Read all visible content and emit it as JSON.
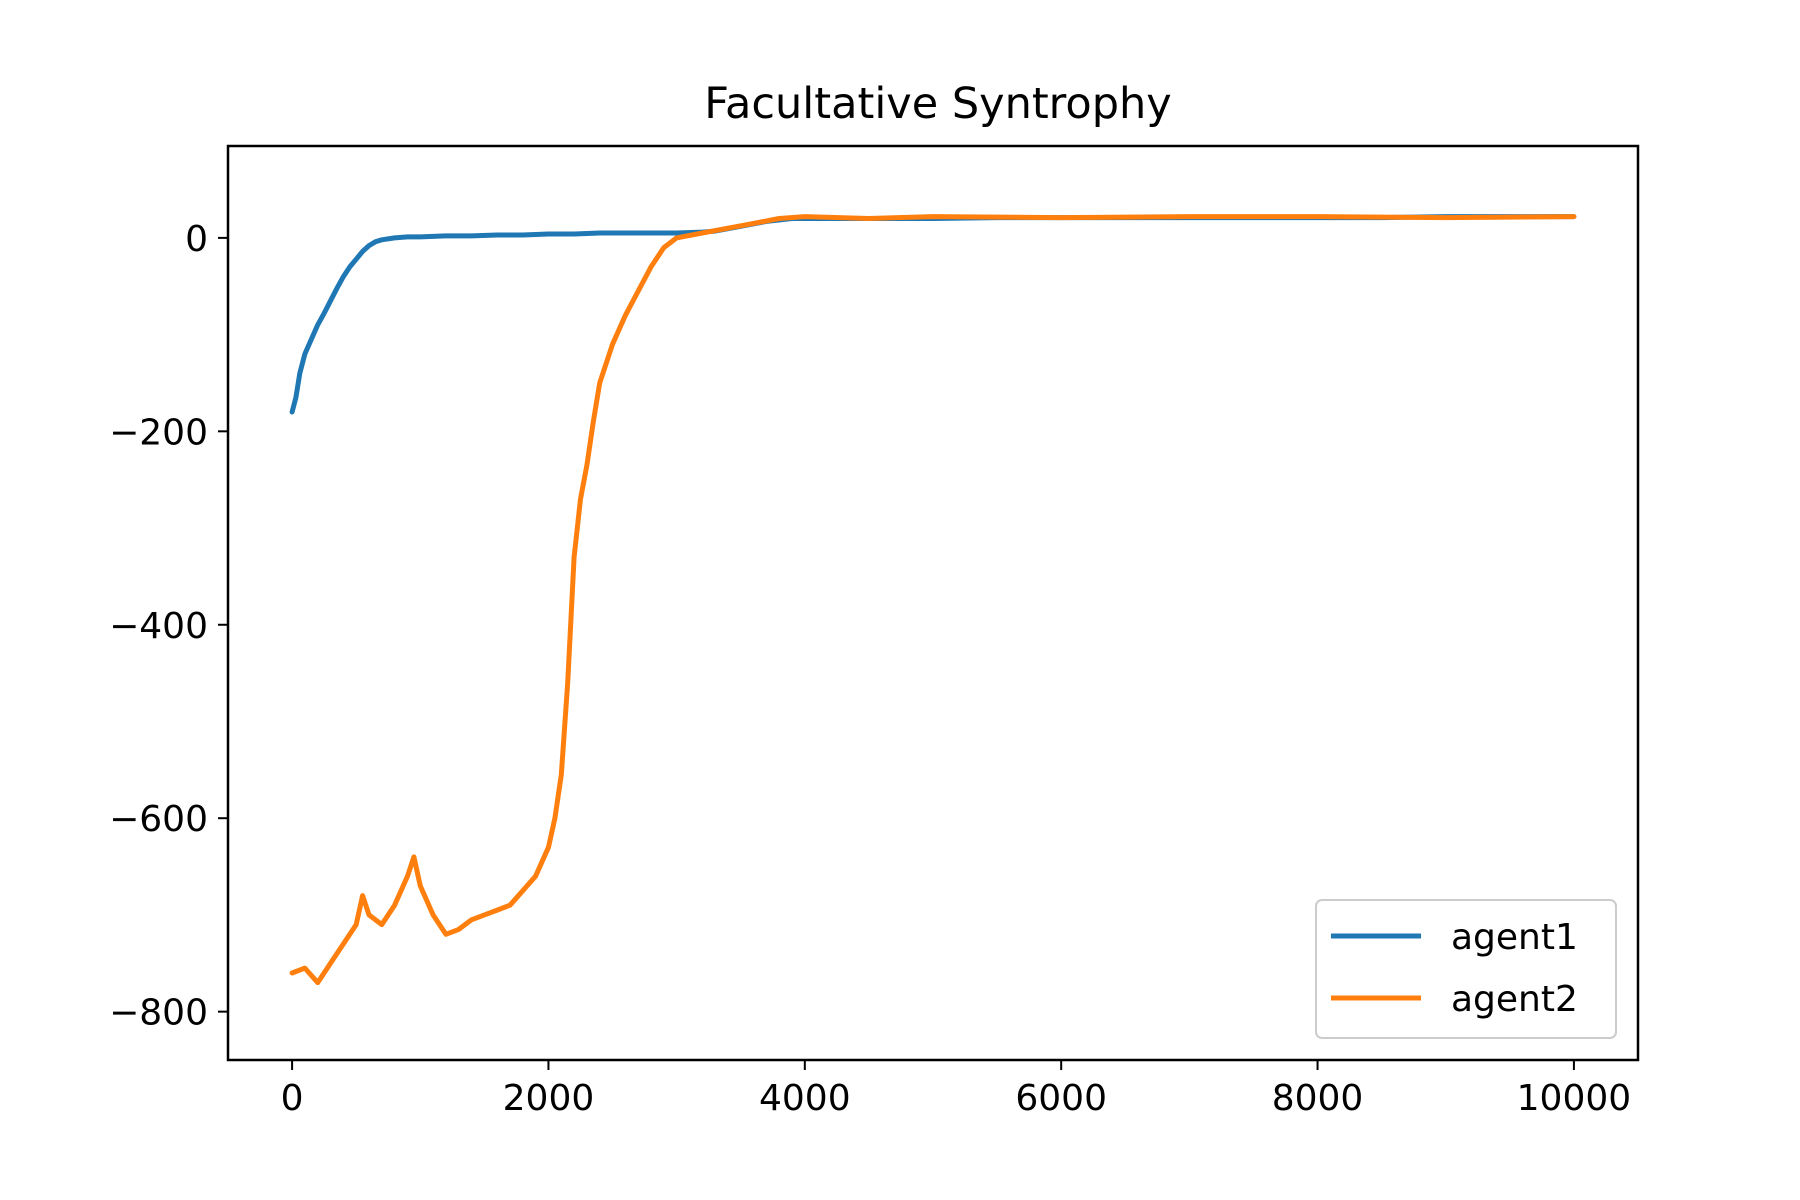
{
  "chart_data": {
    "type": "line",
    "title": "Facultative Syntrophy",
    "xlabel": "",
    "ylabel": "",
    "xlim": [
      -500,
      10500
    ],
    "ylim": [
      -850,
      95
    ],
    "xticks": [
      0,
      2000,
      4000,
      6000,
      8000,
      10000
    ],
    "xtick_labels": [
      "0",
      "2000",
      "4000",
      "6000",
      "8000",
      "10000"
    ],
    "yticks": [
      0,
      -200,
      -400,
      -600,
      -800
    ],
    "ytick_labels": [
      "0",
      "−200",
      "−400",
      "−600",
      "−800"
    ],
    "grid": false,
    "legend_position": "lower-right",
    "series": [
      {
        "name": "agent1",
        "color": "#1f77b4",
        "x": [
          0,
          30,
          60,
          100,
          150,
          200,
          250,
          300,
          350,
          400,
          450,
          500,
          550,
          600,
          650,
          700,
          800,
          900,
          1000,
          1200,
          1400,
          1600,
          1800,
          2000,
          2200,
          2400,
          2600,
          2800,
          3000,
          3200,
          3300,
          3500,
          3700,
          3900,
          4200,
          4600,
          5000,
          5500,
          6000,
          6500,
          7000,
          7500,
          8000,
          8500,
          9000,
          9500,
          10000
        ],
        "y": [
          -180,
          -165,
          -140,
          -120,
          -105,
          -90,
          -78,
          -65,
          -52,
          -40,
          -30,
          -22,
          -14,
          -8,
          -4,
          -2,
          0,
          1,
          1,
          2,
          2,
          3,
          3,
          4,
          4,
          5,
          5,
          5,
          5,
          6,
          7,
          12,
          17,
          20,
          20,
          20,
          20,
          21,
          21,
          21,
          21,
          21,
          21,
          21,
          22,
          22,
          22
        ]
      },
      {
        "name": "agent2",
        "color": "#ff7f0e",
        "x": [
          0,
          100,
          200,
          300,
          400,
          500,
          550,
          600,
          700,
          800,
          900,
          950,
          1000,
          1100,
          1200,
          1300,
          1400,
          1500,
          1600,
          1700,
          1800,
          1900,
          2000,
          2050,
          2100,
          2150,
          2200,
          2250,
          2300,
          2350,
          2400,
          2500,
          2600,
          2700,
          2800,
          2900,
          3000,
          3200,
          3400,
          3600,
          3800,
          4000,
          4500,
          5000,
          6000,
          7000,
          8000,
          9000,
          10000
        ],
        "y": [
          -760,
          -755,
          -770,
          -750,
          -730,
          -710,
          -680,
          -700,
          -710,
          -690,
          -660,
          -640,
          -670,
          -700,
          -720,
          -715,
          -705,
          -700,
          -695,
          -690,
          -675,
          -660,
          -630,
          -600,
          -555,
          -460,
          -330,
          -270,
          -235,
          -190,
          -150,
          -110,
          -80,
          -55,
          -30,
          -10,
          0,
          5,
          10,
          15,
          20,
          22,
          20,
          22,
          21,
          22,
          22,
          21,
          22
        ]
      }
    ]
  }
}
